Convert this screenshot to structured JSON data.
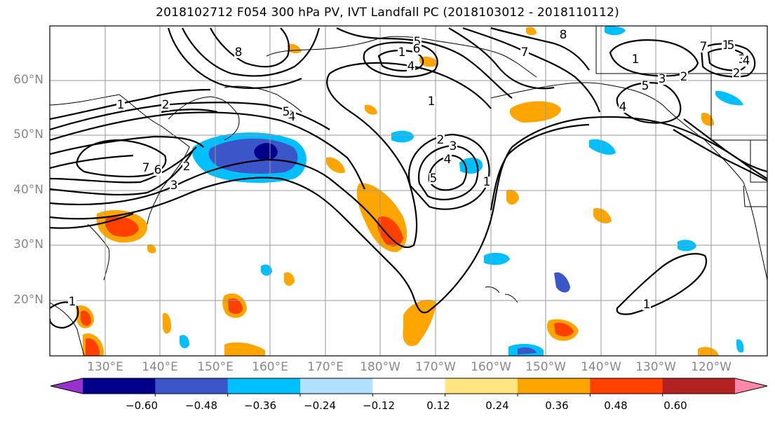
{
  "title": "2018102712 F054 300 hPa PV, IVT Landfall PC (2018103012 - 2018110112)",
  "latitude_labels": [
    "60°N",
    "50°N",
    "40°N",
    "30°N",
    "20°N"
  ],
  "longitude_labels": [
    "130°E",
    "140°E",
    "150°E",
    "160°E",
    "170°E",
    "180°W",
    "170°W",
    "160°W",
    "150°W",
    "140°W",
    "130°W",
    "120°W"
  ],
  "colorbar": {
    "tick_labels": [
      "−0.60",
      "−0.48",
      "−0.36",
      "−0.24",
      "−0.12",
      "0.12",
      "0.24",
      "0.36",
      "0.48",
      "0.60"
    ],
    "colors": [
      "#9932cc",
      "#00008b",
      "#3a56c8",
      "#00bfff",
      "#b0e2ff",
      "#ffffff",
      "#ffe680",
      "#ffa500",
      "#ff4000",
      "#b22222",
      "#ff88aa"
    ]
  },
  "contour_labels": [
    "1",
    "2",
    "2",
    "3",
    "4",
    "5",
    "6",
    "7",
    "8",
    "1",
    "7",
    "8",
    "1",
    "5",
    "4",
    "1",
    "2",
    "3",
    "4",
    "5",
    "6",
    "1",
    "2",
    "3",
    "4",
    "5",
    "7",
    "1",
    "2",
    "3",
    "4",
    "5",
    "1",
    "1"
  ]
}
